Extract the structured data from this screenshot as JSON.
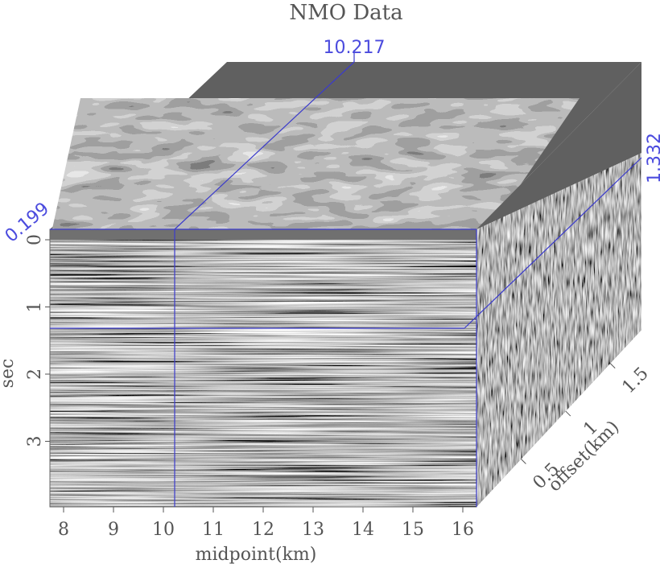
{
  "title": "NMO Data",
  "slice_labels": {
    "midpoint_value": "10.217",
    "time_value": "1.332",
    "offset_value": "0.199"
  },
  "axes": {
    "midpoint": {
      "label": "midpoint(km)",
      "ticks": [
        "8",
        "9",
        "10",
        "11",
        "12",
        "13",
        "14",
        "15",
        "16"
      ]
    },
    "time": {
      "label": "sec",
      "ticks": [
        "0",
        "1",
        "2",
        "3"
      ]
    },
    "offset": {
      "label": "offset(km)",
      "ticks": [
        "0.5",
        "1",
        "1.5"
      ]
    }
  },
  "colors": {
    "slice_lines": "#3a3acc",
    "slice_text": "#4b4bde",
    "axis_text": "#555555",
    "background_panel": "#606060"
  }
}
